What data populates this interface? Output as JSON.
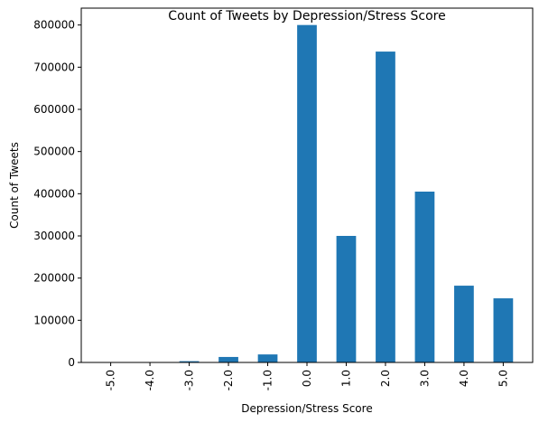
{
  "chart_data": {
    "type": "bar",
    "title": "Count of Tweets by Depression/Stress Score",
    "xlabel": "Depression/Stress Score",
    "ylabel": "Count of Tweets",
    "categories": [
      "-5.0",
      "-4.0",
      "-3.0",
      "-2.0",
      "-1.0",
      "0.0",
      "1.0",
      "2.0",
      "3.0",
      "4.0",
      "5.0"
    ],
    "values": [
      400,
      900,
      3000,
      13000,
      19000,
      800000,
      300000,
      737000,
      405000,
      182000,
      152000
    ],
    "ylim": [
      0,
      840000
    ],
    "yticks": [
      0,
      100000,
      200000,
      300000,
      400000,
      500000,
      600000,
      700000,
      800000
    ],
    "bar_color": "#1f77b4",
    "grid": false,
    "legend": "none"
  }
}
